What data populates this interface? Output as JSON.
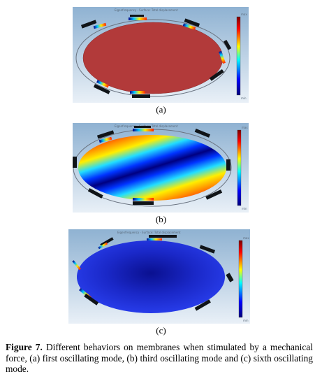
{
  "panels": [
    {
      "id": "a",
      "label": "(a)",
      "mode": "first oscillating mode",
      "surface": "uniform-dark-red"
    },
    {
      "id": "b",
      "label": "(b)",
      "mode": "third oscillating mode",
      "surface": "banded-red-yellow-blue"
    },
    {
      "id": "c",
      "label": "(c)",
      "mode": "sixth oscillating mode",
      "surface": "radial-blue"
    }
  ],
  "caption": {
    "prefix": "Figure 7.",
    "text": "Different behaviors on membranes when stimulated by a mechanical force, (a) first oscillating mode, (b) third oscillating mode and (c) sixth oscillating mode."
  },
  "colors": {
    "background_top": "#8fb2d2",
    "background_bottom": "#e7eef6",
    "mode_a_surface": "#b23a3a",
    "mode_c_surface": "#1e2fd8",
    "colorbar": [
      "#7a0000",
      "#ff0000",
      "#ffff00",
      "#00ffff",
      "#0000ff",
      "#00007a"
    ]
  },
  "icons": [
    "colorbar-icon",
    "cantilever-icon",
    "membrane-icon"
  ]
}
